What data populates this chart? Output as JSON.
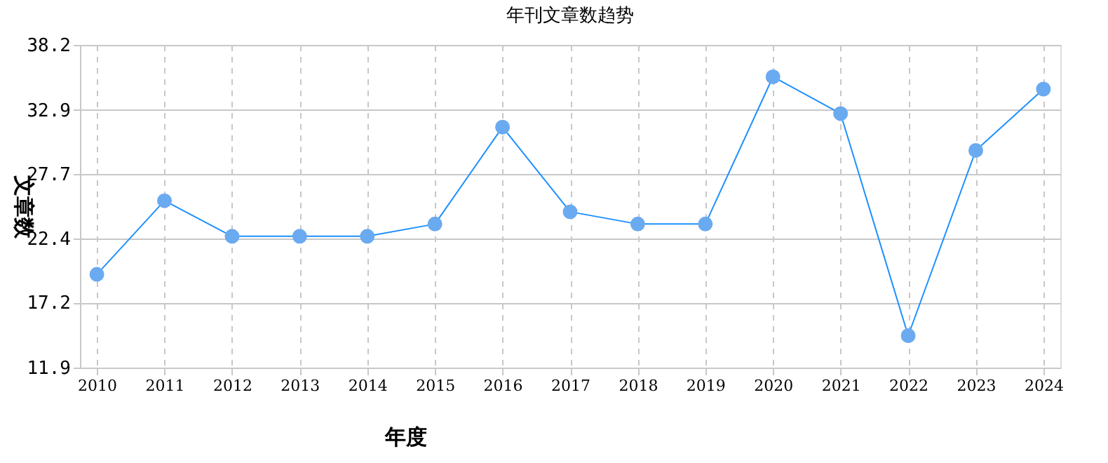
{
  "chart_data": {
    "type": "line",
    "title": "年刊文章数趋势",
    "xlabel": "年度",
    "ylabel": "文章数",
    "categories": [
      "2010",
      "2011",
      "2012",
      "2013",
      "2014",
      "2015",
      "2016",
      "2017",
      "2018",
      "2019",
      "2020",
      "2021",
      "2022",
      "2023",
      "2024"
    ],
    "series": [
      {
        "color": "#1e90ff",
        "values": [
          19.5,
          25.5,
          22.6,
          22.6,
          22.6,
          23.6,
          31.5,
          24.6,
          23.6,
          23.6,
          35.6,
          32.6,
          14.5,
          29.6,
          34.6
        ]
      }
    ],
    "ylim": [
      11.9,
      38.2
    ],
    "yticks": [
      11.9,
      17.2,
      22.4,
      27.7,
      32.9,
      38.2
    ],
    "grid": true,
    "marker": "circle",
    "line_style": "solid",
    "legend": false
  }
}
